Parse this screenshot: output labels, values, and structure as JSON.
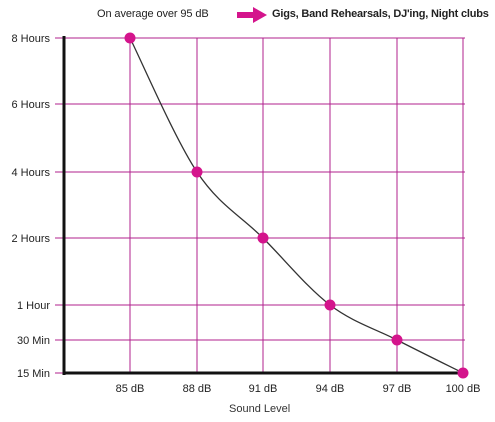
{
  "header": {
    "note": "On average over 95 dB",
    "target": "Gigs, Band Rehearsals, DJ'ing, Night clubs"
  },
  "colors": {
    "accent": "#d4148c",
    "grid": "#b0208e",
    "axis": "#111111",
    "curve": "#333333"
  },
  "chart_data": {
    "type": "line",
    "categories": [
      "85 dB",
      "88 dB",
      "91 dB",
      "94 dB",
      "97 dB",
      "100 dB"
    ],
    "x": [
      85,
      88,
      91,
      94,
      97,
      100
    ],
    "y_ticks": [
      {
        "label": "8 Hours",
        "minutes": 480
      },
      {
        "label": "6 Hours",
        "minutes": 360
      },
      {
        "label": "4 Hours",
        "minutes": 240
      },
      {
        "label": "2 Hours",
        "minutes": 120
      },
      {
        "label": "1 Hour",
        "minutes": 60
      },
      {
        "label": "30 Min",
        "minutes": 30
      },
      {
        "label": "15 Min",
        "minutes": 15
      }
    ],
    "y_scale": "categorical-ticks (non-linear)",
    "series": [
      {
        "values_minutes": [
          480,
          240,
          120,
          60,
          30,
          15
        ]
      }
    ],
    "title": "",
    "xlabel": "Sound Level",
    "ylabel": "",
    "grid": true
  }
}
